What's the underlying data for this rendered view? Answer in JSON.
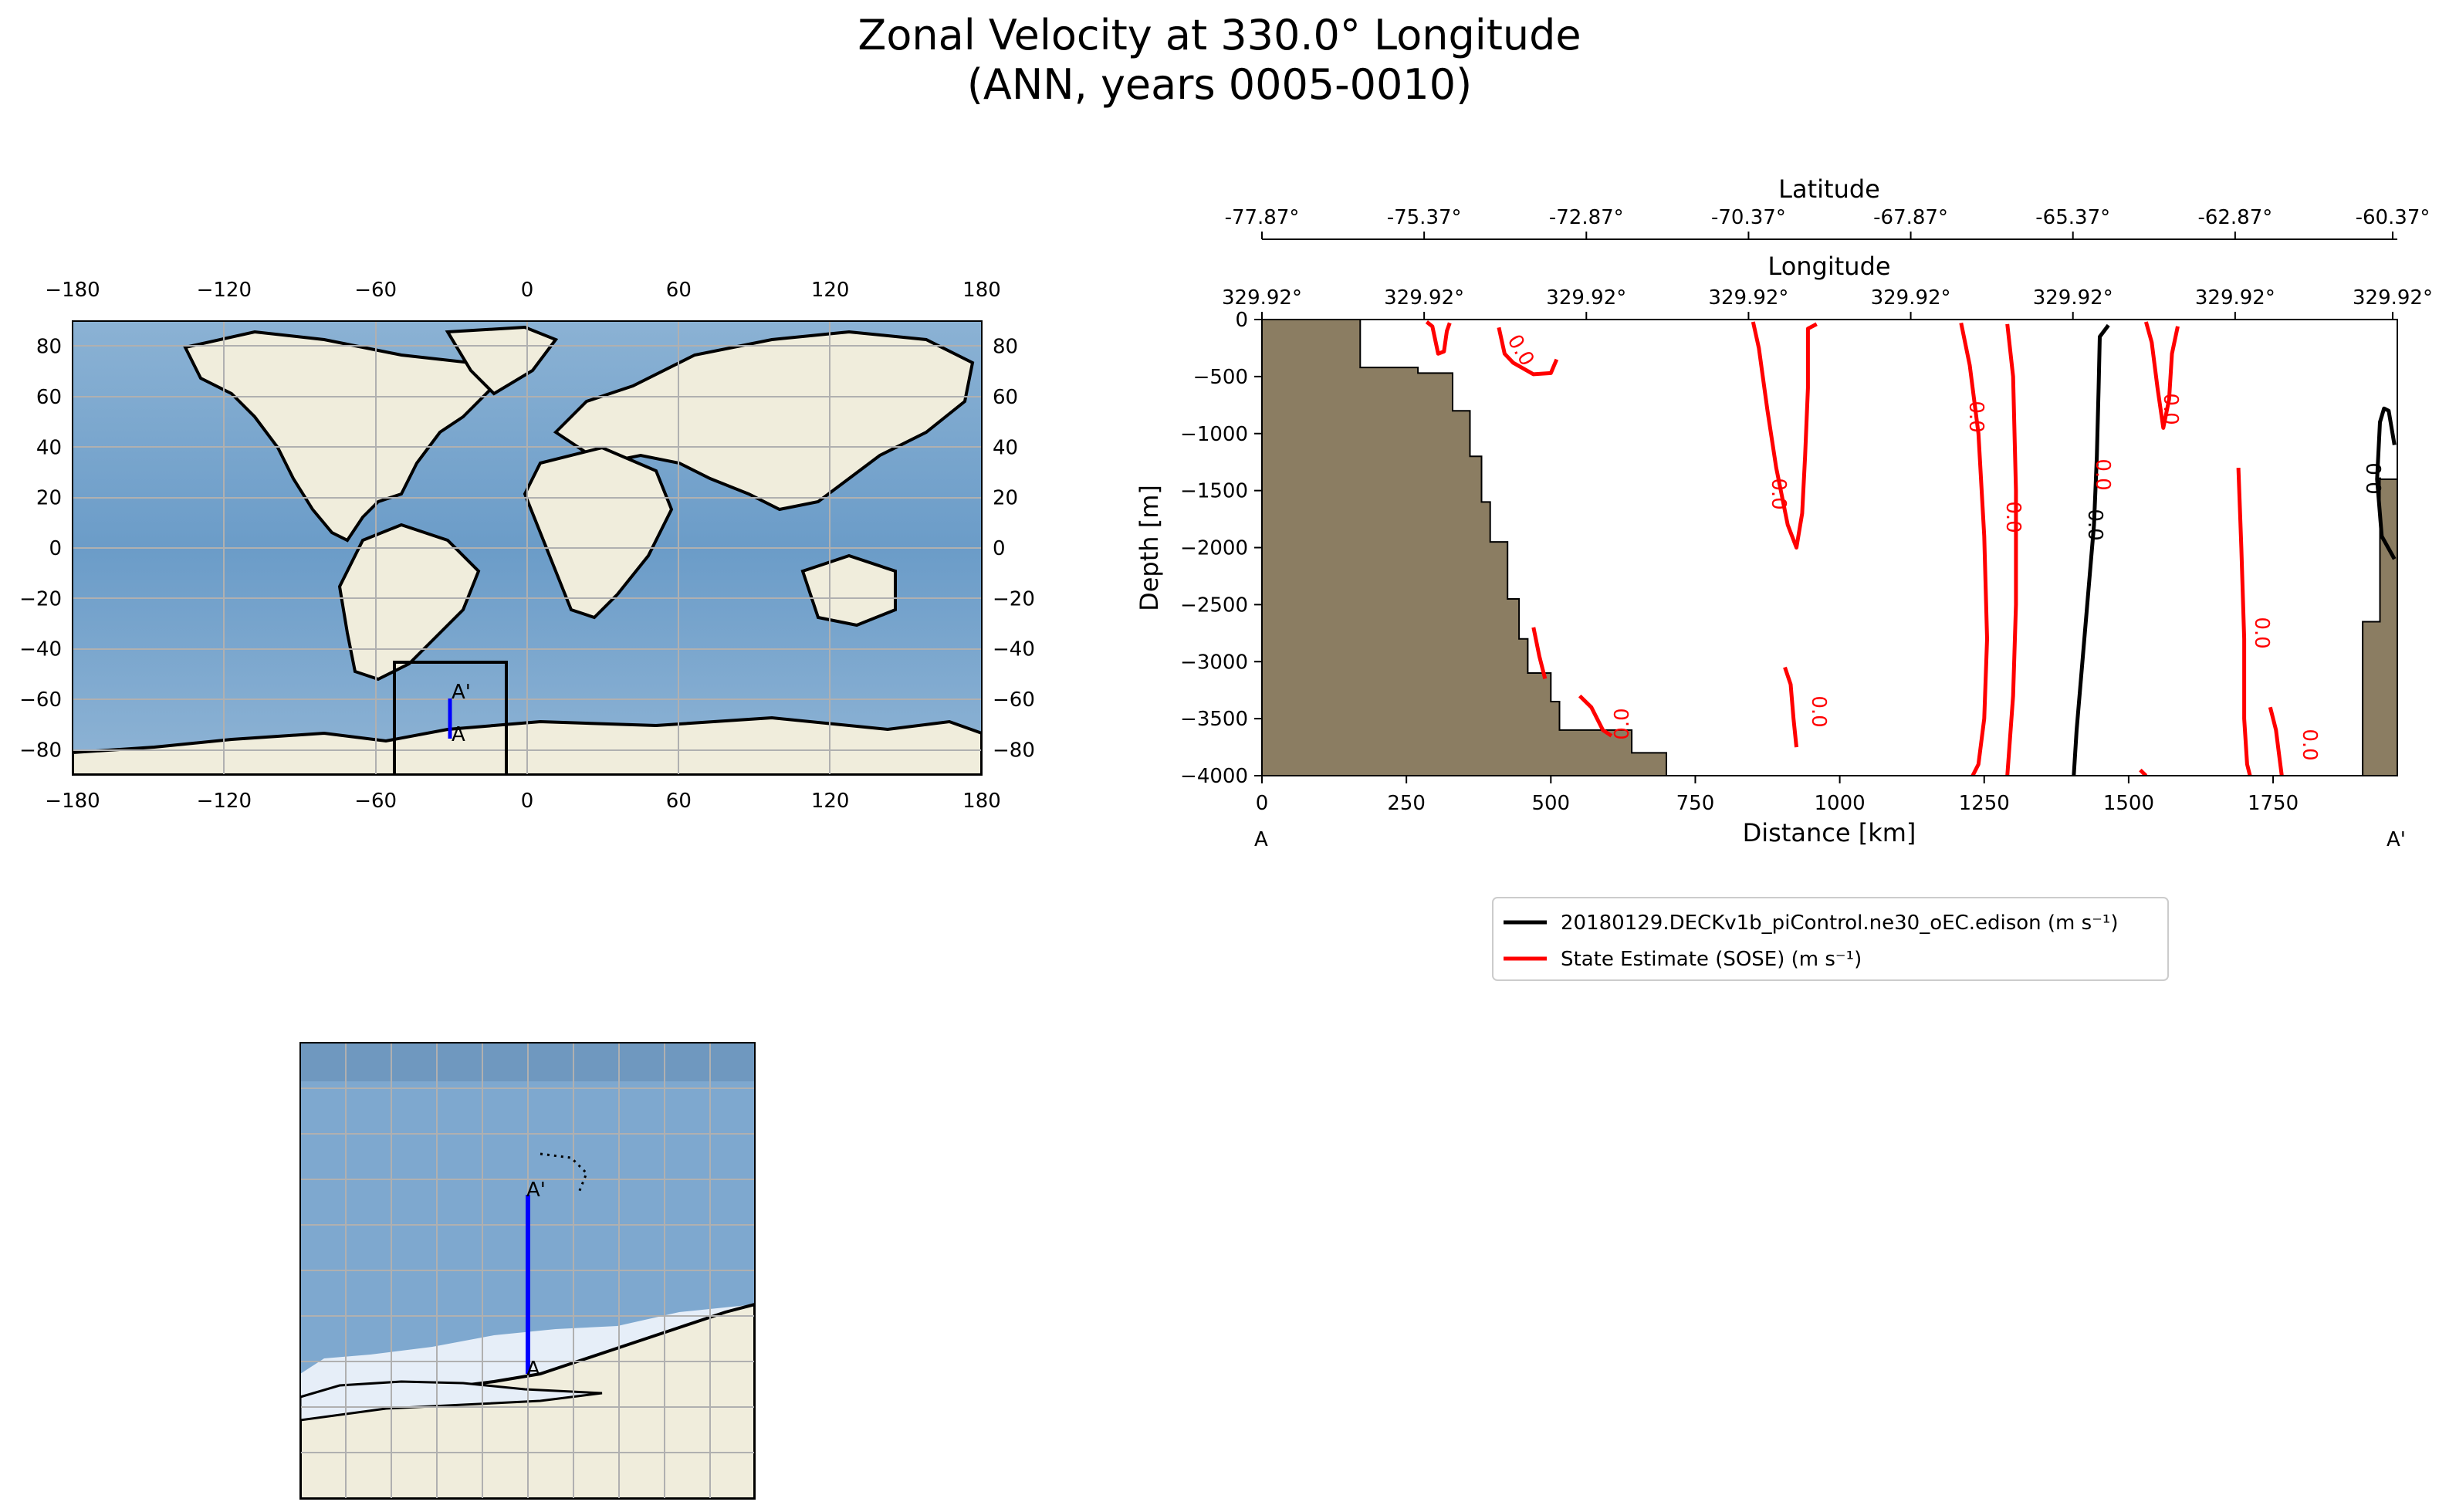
{
  "title_line1": "Zonal Velocity at 330.0° Longitude",
  "title_line2": "(ANN, years 0005-0010)",
  "colors": {
    "land": "#f0eddc",
    "ocean": "#7ba6cc",
    "ocean_dark": "#5e8fbf",
    "seaice": "#e8f0fa",
    "bathymetry": "#8b7d62",
    "model_line": "#000000",
    "obs_line": "#ff0000",
    "transect": "#0000ff",
    "grid": "#b0b0b0"
  },
  "globe_map": {
    "x_ticks": [
      "−180",
      "−120",
      "−60",
      "0",
      "60",
      "120",
      "180"
    ],
    "y_ticks": [
      "80",
      "60",
      "40",
      "20",
      "0",
      "−20",
      "−40",
      "−60",
      "−80"
    ],
    "label_start": "A",
    "label_end": "A'"
  },
  "inset_map": {
    "label_start": "A",
    "label_end": "A'"
  },
  "chart_data": {
    "type": "line",
    "subtype": "transect-contour",
    "xlabel": "Distance [km]",
    "ylabel": "Depth [m]",
    "xlim": [
      0,
      1965
    ],
    "ylim": [
      -4000,
      0
    ],
    "x_ticks": [
      "0",
      "250",
      "500",
      "750",
      "1000",
      "1250",
      "1500",
      "1750"
    ],
    "x_tick_values": [
      0,
      250,
      500,
      750,
      1000,
      1250,
      1500,
      1750
    ],
    "y_ticks": [
      "0",
      "−500",
      "−1000",
      "−1500",
      "−2000",
      "−2500",
      "−3000",
      "−3500",
      "−4000"
    ],
    "y_tick_values": [
      0,
      -500,
      -1000,
      -1500,
      -2000,
      -2500,
      -3000,
      -3500,
      -4000
    ],
    "top_axis_lat_label": "Latitude",
    "lat_ticks": [
      "-77.87°",
      "-75.37°",
      "-72.87°",
      "-70.37°",
      "-67.87°",
      "-65.37°",
      "-62.87°",
      "-60.37°"
    ],
    "top_axis_lon_label": "Longitude",
    "lon_ticks": [
      "329.92°",
      "329.92°",
      "329.92°",
      "329.92°",
      "329.92°",
      "329.92°",
      "329.92°",
      "329.92°"
    ],
    "endpoint_start": "A",
    "endpoint_end": "A'",
    "contour_label": "0.0",
    "legend": [
      {
        "name": "20180129.DECKv1b_piControl.ne30_oEC.edison (m s⁻¹)",
        "color": "#000000"
      },
      {
        "name": "State Estimate (SOSE) (m s⁻¹)",
        "color": "#ff0000"
      }
    ],
    "bathymetry": [
      [
        0,
        0
      ],
      [
        170,
        0
      ],
      [
        170,
        -420
      ],
      [
        270,
        -420
      ],
      [
        270,
        -470
      ],
      [
        330,
        -470
      ],
      [
        330,
        -800
      ],
      [
        360,
        -800
      ],
      [
        360,
        -1200
      ],
      [
        380,
        -1200
      ],
      [
        380,
        -1600
      ],
      [
        395,
        -1600
      ],
      [
        395,
        -1950
      ],
      [
        425,
        -1950
      ],
      [
        425,
        -2450
      ],
      [
        445,
        -2450
      ],
      [
        445,
        -2800
      ],
      [
        460,
        -2800
      ],
      [
        460,
        -3100
      ],
      [
        500,
        -3100
      ],
      [
        500,
        -3350
      ],
      [
        515,
        -3350
      ],
      [
        515,
        -3600
      ],
      [
        640,
        -3600
      ],
      [
        640,
        -3800
      ],
      [
        700,
        -3800
      ],
      [
        700,
        -3900
      ],
      [
        700,
        -4000
      ],
      [
        0,
        -4000
      ]
    ],
    "bathymetry_east": [
      [
        1965,
        -1400
      ],
      [
        1935,
        -1400
      ],
      [
        1935,
        -2650
      ],
      [
        1905,
        -2650
      ],
      [
        1905,
        -4000
      ],
      [
        1965,
        -4000
      ]
    ],
    "series": [
      {
        "name": "model 0.0 contour",
        "color": "#000000",
        "segments": [
          [
            [
              1405,
              -4000
            ],
            [
              1410,
              -3600
            ],
            [
              1420,
              -3000
            ],
            [
              1430,
              -2400
            ],
            [
              1440,
              -1800
            ],
            [
              1445,
              -1200
            ],
            [
              1448,
              -600
            ],
            [
              1450,
              -150
            ],
            [
              1465,
              -50
            ]
          ],
          [
            [
              1960,
              -1100
            ],
            [
              1950,
              -800
            ],
            [
              1942,
              -780
            ],
            [
              1935,
              -900
            ],
            [
              1930,
              -1400
            ],
            [
              1938,
              -1900
            ],
            [
              1960,
              -2100
            ]
          ]
        ]
      },
      {
        "name": "SOSE 0.0 contour",
        "color": "#ff0000",
        "segments": [
          [
            [
              285,
              -20
            ],
            [
              295,
              -60
            ],
            [
              305,
              -300
            ],
            [
              315,
              -280
            ],
            [
              320,
              -100
            ],
            [
              325,
              -30
            ]
          ],
          [
            [
              410,
              -70
            ],
            [
              420,
              -300
            ],
            [
              435,
              -380
            ],
            [
              470,
              -480
            ],
            [
              500,
              -470
            ],
            [
              510,
              -350
            ]
          ],
          [
            [
              850,
              -20
            ],
            [
              860,
              -250
            ],
            [
              875,
              -800
            ],
            [
              890,
              -1300
            ],
            [
              910,
              -1800
            ],
            [
              925,
              -2000
            ],
            [
              935,
              -1700
            ],
            [
              940,
              -1200
            ],
            [
              945,
              -600
            ],
            [
              945,
              -80
            ],
            [
              960,
              -40
            ]
          ],
          [
            [
              905,
              -3050
            ],
            [
              915,
              -3200
            ],
            [
              920,
              -3500
            ],
            [
              925,
              -3750
            ]
          ],
          [
            [
              1210,
              -30
            ],
            [
              1225,
              -400
            ],
            [
              1240,
              -1000
            ],
            [
              1250,
              -1900
            ],
            [
              1255,
              -2800
            ],
            [
              1250,
              -3500
            ],
            [
              1240,
              -3900
            ],
            [
              1230,
              -4000
            ]
          ],
          [
            [
              1290,
              -40
            ],
            [
              1300,
              -500
            ],
            [
              1305,
              -1500
            ],
            [
              1305,
              -2500
            ],
            [
              1300,
              -3300
            ],
            [
              1290,
              -4000
            ]
          ],
          [
            [
              1530,
              -20
            ],
            [
              1540,
              -200
            ],
            [
              1550,
              -600
            ],
            [
              1560,
              -950
            ],
            [
              1570,
              -700
            ],
            [
              1575,
              -300
            ],
            [
              1585,
              -60
            ]
          ],
          [
            [
              1520,
              -3950
            ],
            [
              1530,
              -4000
            ]
          ],
          [
            [
              1690,
              -1300
            ],
            [
              1695,
              -2000
            ],
            [
              1700,
              -2800
            ],
            [
              1700,
              -3500
            ],
            [
              1705,
              -3900
            ],
            [
              1710,
              -4000
            ]
          ],
          [
            [
              1745,
              -3400
            ],
            [
              1755,
              -3600
            ],
            [
              1760,
              -3800
            ],
            [
              1765,
              -4000
            ]
          ],
          [
            [
              470,
              -2700
            ],
            [
              480,
              -2950
            ],
            [
              490,
              -3150
            ]
          ],
          [
            [
              550,
              -3300
            ],
            [
              570,
              -3400
            ],
            [
              590,
              -3600
            ],
            [
              605,
              -3650
            ]
          ]
        ]
      }
    ]
  }
}
